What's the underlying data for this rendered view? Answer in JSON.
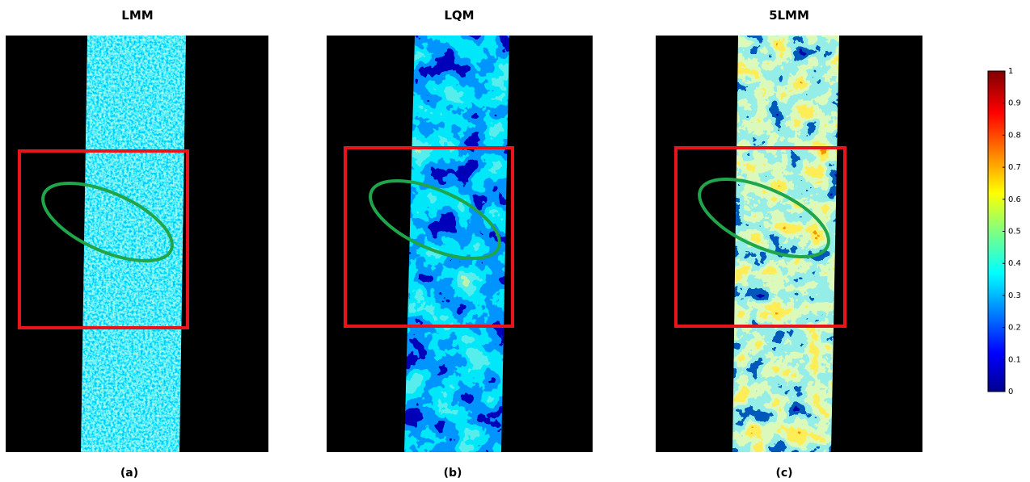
{
  "panels": [
    {
      "title": "LMM",
      "caption": "(a)"
    },
    {
      "title": "LQM",
      "caption": "(b)"
    },
    {
      "title": "5LMM",
      "caption": "(c)"
    }
  ],
  "colorbar": {
    "lim": [
      0,
      1
    ],
    "ticks": [
      0,
      0.1,
      0.2,
      0.3,
      0.4,
      0.5,
      0.6,
      0.7,
      0.8,
      0.9,
      1
    ]
  }
}
